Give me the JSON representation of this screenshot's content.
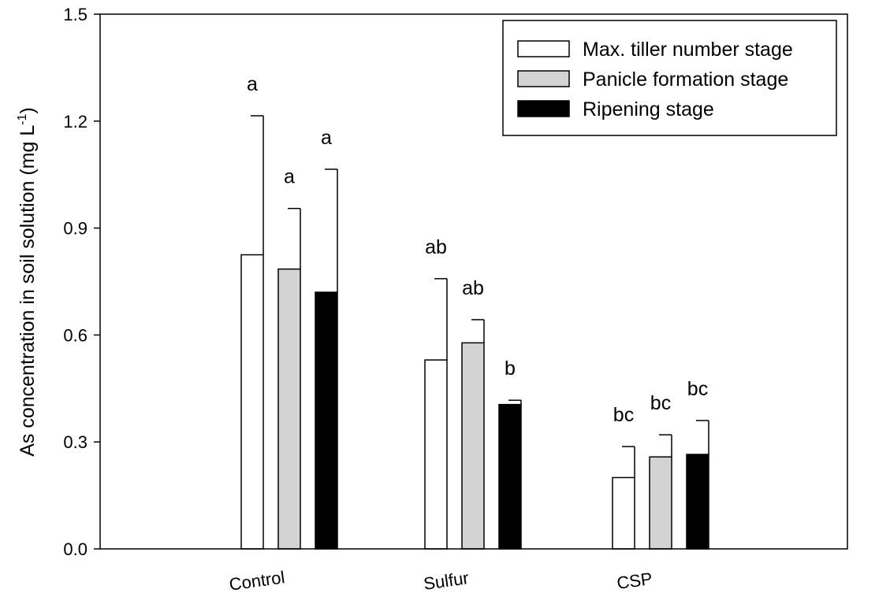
{
  "chart_data": {
    "type": "bar",
    "ylabel": "As concentration in soil solution (mg L",
    "ylabel_sup": "-1",
    "ylabel_close": ")",
    "ylim": [
      0,
      1.5
    ],
    "yticks": [
      "0.0",
      "0.3",
      "0.6",
      "0.9",
      "1.2",
      "1.5"
    ],
    "categories": [
      "Control",
      "Sulfur",
      "CSP"
    ],
    "series": [
      {
        "name": "Max. tiller number stage",
        "color": "#ffffff",
        "values": [
          0.825,
          0.53,
          0.2
        ],
        "errors": [
          0.39,
          0.228,
          0.087
        ],
        "letters": [
          "a",
          "ab",
          "bc"
        ]
      },
      {
        "name": "Panicle formation stage",
        "color": "#d3d3d3",
        "values": [
          0.785,
          0.578,
          0.258
        ],
        "errors": [
          0.17,
          0.065,
          0.062
        ],
        "letters": [
          "a",
          "ab",
          "bc"
        ]
      },
      {
        "name": "Ripening stage",
        "color": "#000000",
        "values": [
          0.72,
          0.405,
          0.265
        ],
        "errors": [
          0.345,
          0.012,
          0.095
        ],
        "letters": [
          "a",
          "b",
          "bc"
        ]
      }
    ],
    "legend_position": "top-right"
  }
}
